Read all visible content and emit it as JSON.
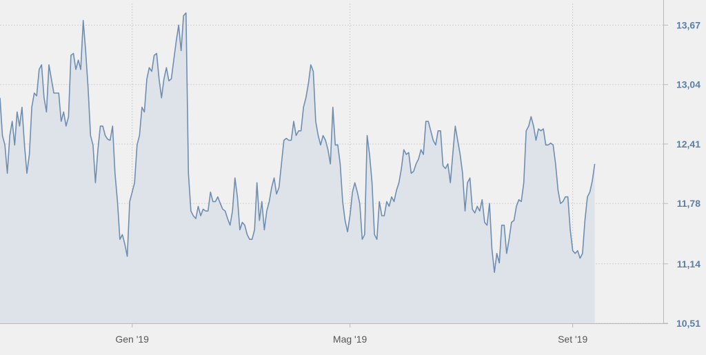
{
  "colors": {
    "background": "#f0f0f0",
    "plot_background": "#f0f0f0",
    "line": "#6e8db0",
    "area_fill": "#dde3e8",
    "grid": "#cfcfcf",
    "axis": "#b8b8b8",
    "y_tick_text": "#5c7ea6",
    "x_tick_text": "#555555"
  },
  "chart_data": {
    "type": "area",
    "title": "",
    "xlabel": "",
    "ylabel": "",
    "grid": true,
    "y_axis_position": "right",
    "ylim": [
      10.51,
      13.9
    ],
    "xlim": [
      0,
      271
    ],
    "y_ticks": [
      {
        "value": 13.67,
        "label": "13,67"
      },
      {
        "value": 13.04,
        "label": "13,04"
      },
      {
        "value": 12.41,
        "label": "12,41"
      },
      {
        "value": 11.78,
        "label": "11,78"
      },
      {
        "value": 11.14,
        "label": "11,14"
      },
      {
        "value": 10.51,
        "label": "10,51"
      }
    ],
    "x_ticks": [
      {
        "value": 54,
        "label": "Gen '19"
      },
      {
        "value": 143,
        "label": "Mag '19"
      },
      {
        "value": 234,
        "label": "Set '19"
      }
    ],
    "series": [
      {
        "values": [
          12.9,
          12.5,
          12.4,
          12.1,
          12.5,
          12.65,
          12.4,
          12.75,
          12.6,
          12.8,
          12.4,
          12.1,
          12.3,
          12.8,
          12.95,
          12.92,
          13.2,
          13.25,
          12.9,
          12.75,
          13.25,
          13.1,
          12.95,
          12.95,
          12.95,
          12.65,
          12.75,
          12.6,
          12.7,
          13.35,
          13.37,
          13.2,
          13.3,
          13.2,
          13.72,
          13.4,
          13.0,
          12.5,
          12.4,
          12.0,
          12.35,
          12.6,
          12.6,
          12.5,
          12.46,
          12.45,
          12.6,
          12.1,
          11.8,
          11.4,
          11.45,
          11.35,
          11.22,
          11.8,
          11.9,
          12.0,
          12.4,
          12.5,
          12.8,
          12.75,
          13.1,
          13.22,
          13.18,
          13.35,
          13.37,
          13.1,
          12.9,
          13.1,
          13.22,
          13.08,
          13.1,
          13.3,
          13.5,
          13.67,
          13.4,
          13.77,
          13.8,
          12.1,
          11.7,
          11.65,
          11.62,
          11.75,
          11.65,
          11.72,
          11.7,
          11.7,
          11.9,
          11.8,
          11.8,
          11.85,
          11.78,
          11.72,
          11.7,
          11.62,
          11.55,
          11.7,
          12.05,
          11.85,
          11.5,
          11.58,
          11.55,
          11.45,
          11.4,
          11.4,
          11.5,
          12.0,
          11.6,
          11.8,
          11.5,
          11.7,
          11.8,
          11.95,
          12.05,
          11.88,
          11.95,
          12.2,
          12.45,
          12.47,
          12.45,
          12.45,
          12.65,
          12.5,
          12.55,
          12.55,
          12.8,
          12.9,
          13.05,
          13.25,
          13.18,
          12.65,
          12.5,
          12.4,
          12.5,
          12.45,
          12.35,
          12.2,
          12.8,
          12.4,
          12.4,
          12.2,
          11.8,
          11.6,
          11.48,
          11.65,
          11.9,
          12.0,
          11.9,
          11.78,
          11.4,
          11.45,
          12.5,
          12.3,
          12.0,
          11.45,
          11.4,
          11.8,
          11.65,
          11.65,
          11.8,
          11.75,
          11.85,
          11.8,
          11.92,
          12.0,
          12.15,
          12.35,
          12.3,
          12.32,
          12.1,
          12.12,
          12.2,
          12.25,
          12.35,
          12.3,
          12.65,
          12.65,
          12.55,
          12.45,
          12.4,
          12.55,
          12.55,
          12.18,
          12.15,
          12.2,
          12.0,
          12.3,
          12.6,
          12.45,
          12.3,
          12.1,
          11.7,
          12.0,
          12.05,
          11.72,
          11.68,
          11.75,
          11.7,
          11.82,
          11.58,
          11.55,
          11.78,
          11.3,
          11.05,
          11.25,
          11.15,
          11.55,
          11.55,
          11.25,
          11.4,
          11.58,
          11.6,
          11.75,
          11.82,
          11.8,
          12.0,
          12.55,
          12.6,
          12.7,
          12.6,
          12.45,
          12.57,
          12.55,
          12.57,
          12.4,
          12.4,
          12.42,
          12.4,
          12.2,
          11.92,
          11.78,
          11.8,
          11.85,
          11.85,
          11.5,
          11.28,
          11.25,
          11.28,
          11.2,
          11.25,
          11.6,
          11.85,
          11.9,
          12.02,
          12.2
        ]
      }
    ]
  }
}
